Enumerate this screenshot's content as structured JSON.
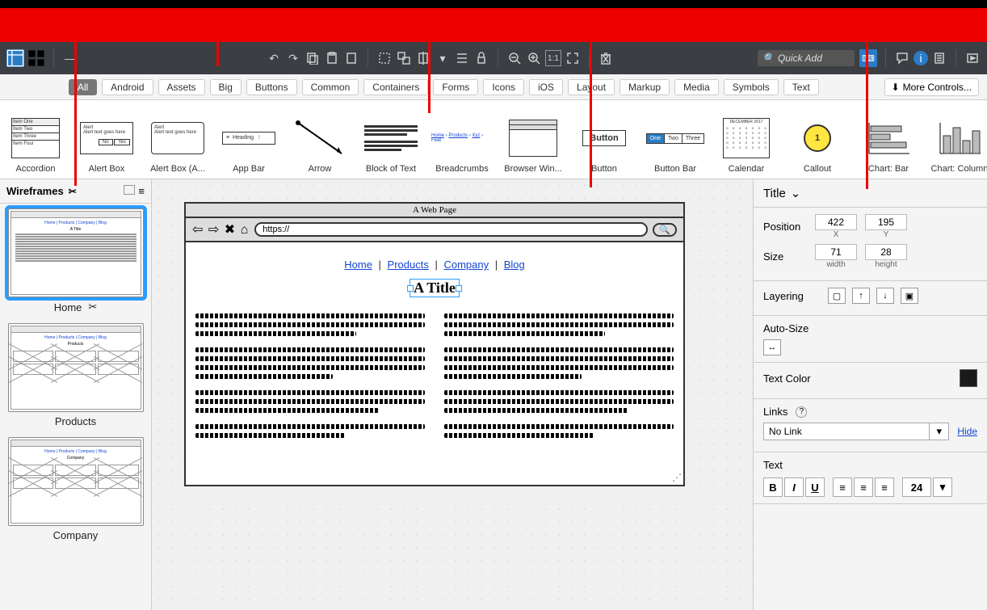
{
  "colors": {
    "red": "#ec0000",
    "toolbar_bg": "#3b3f44",
    "accent": "#2a7cc7",
    "selection": "#2a9dff",
    "panel_bg": "#f4f4f4"
  },
  "toolbar": {
    "quick_add_placeholder": "Quick Add"
  },
  "filters": {
    "items": [
      "All",
      "Android",
      "Assets",
      "Big",
      "Buttons",
      "Common",
      "Containers",
      "Forms",
      "Icons",
      "iOS",
      "Layout",
      "Markup",
      "Media",
      "Symbols",
      "Text"
    ],
    "active_index": 0,
    "more_label": "More Controls..."
  },
  "library": [
    {
      "label": "Accordion"
    },
    {
      "label": "Alert Box"
    },
    {
      "label": "Alert Box (A..."
    },
    {
      "label": "App Bar"
    },
    {
      "label": "Arrow"
    },
    {
      "label": "Block of Text"
    },
    {
      "label": "Breadcrumbs"
    },
    {
      "label": "Browser Win..."
    },
    {
      "label": "Button"
    },
    {
      "label": "Button Bar"
    },
    {
      "label": "Calendar"
    },
    {
      "label": "Callout"
    },
    {
      "label": "Chart: Bar"
    },
    {
      "label": "Chart: Column"
    }
  ],
  "navigator": {
    "title": "Wireframes",
    "items": [
      {
        "label": "Home",
        "active": true,
        "type": "text"
      },
      {
        "label": "Products",
        "active": false,
        "type": "grid"
      },
      {
        "label": "Company",
        "active": false,
        "type": "grid"
      }
    ]
  },
  "canvas": {
    "page_title": "A Web Page",
    "url": "https://",
    "nav_links": [
      "Home",
      "Products",
      "Company",
      "Blog"
    ],
    "selected_title": "A Title"
  },
  "inspector": {
    "title": "Title",
    "position": {
      "label": "Position",
      "x": "422",
      "y": "195",
      "x_label": "X",
      "y_label": "Y"
    },
    "size": {
      "label": "Size",
      "w": "71",
      "h": "28",
      "w_label": "width",
      "h_label": "height"
    },
    "layering_label": "Layering",
    "autosize_label": "Auto-Size",
    "textcolor_label": "Text Color",
    "links_label": "Links",
    "link_value": "No Link",
    "hide_label": "Hide",
    "text_label": "Text",
    "font_size": "24"
  }
}
